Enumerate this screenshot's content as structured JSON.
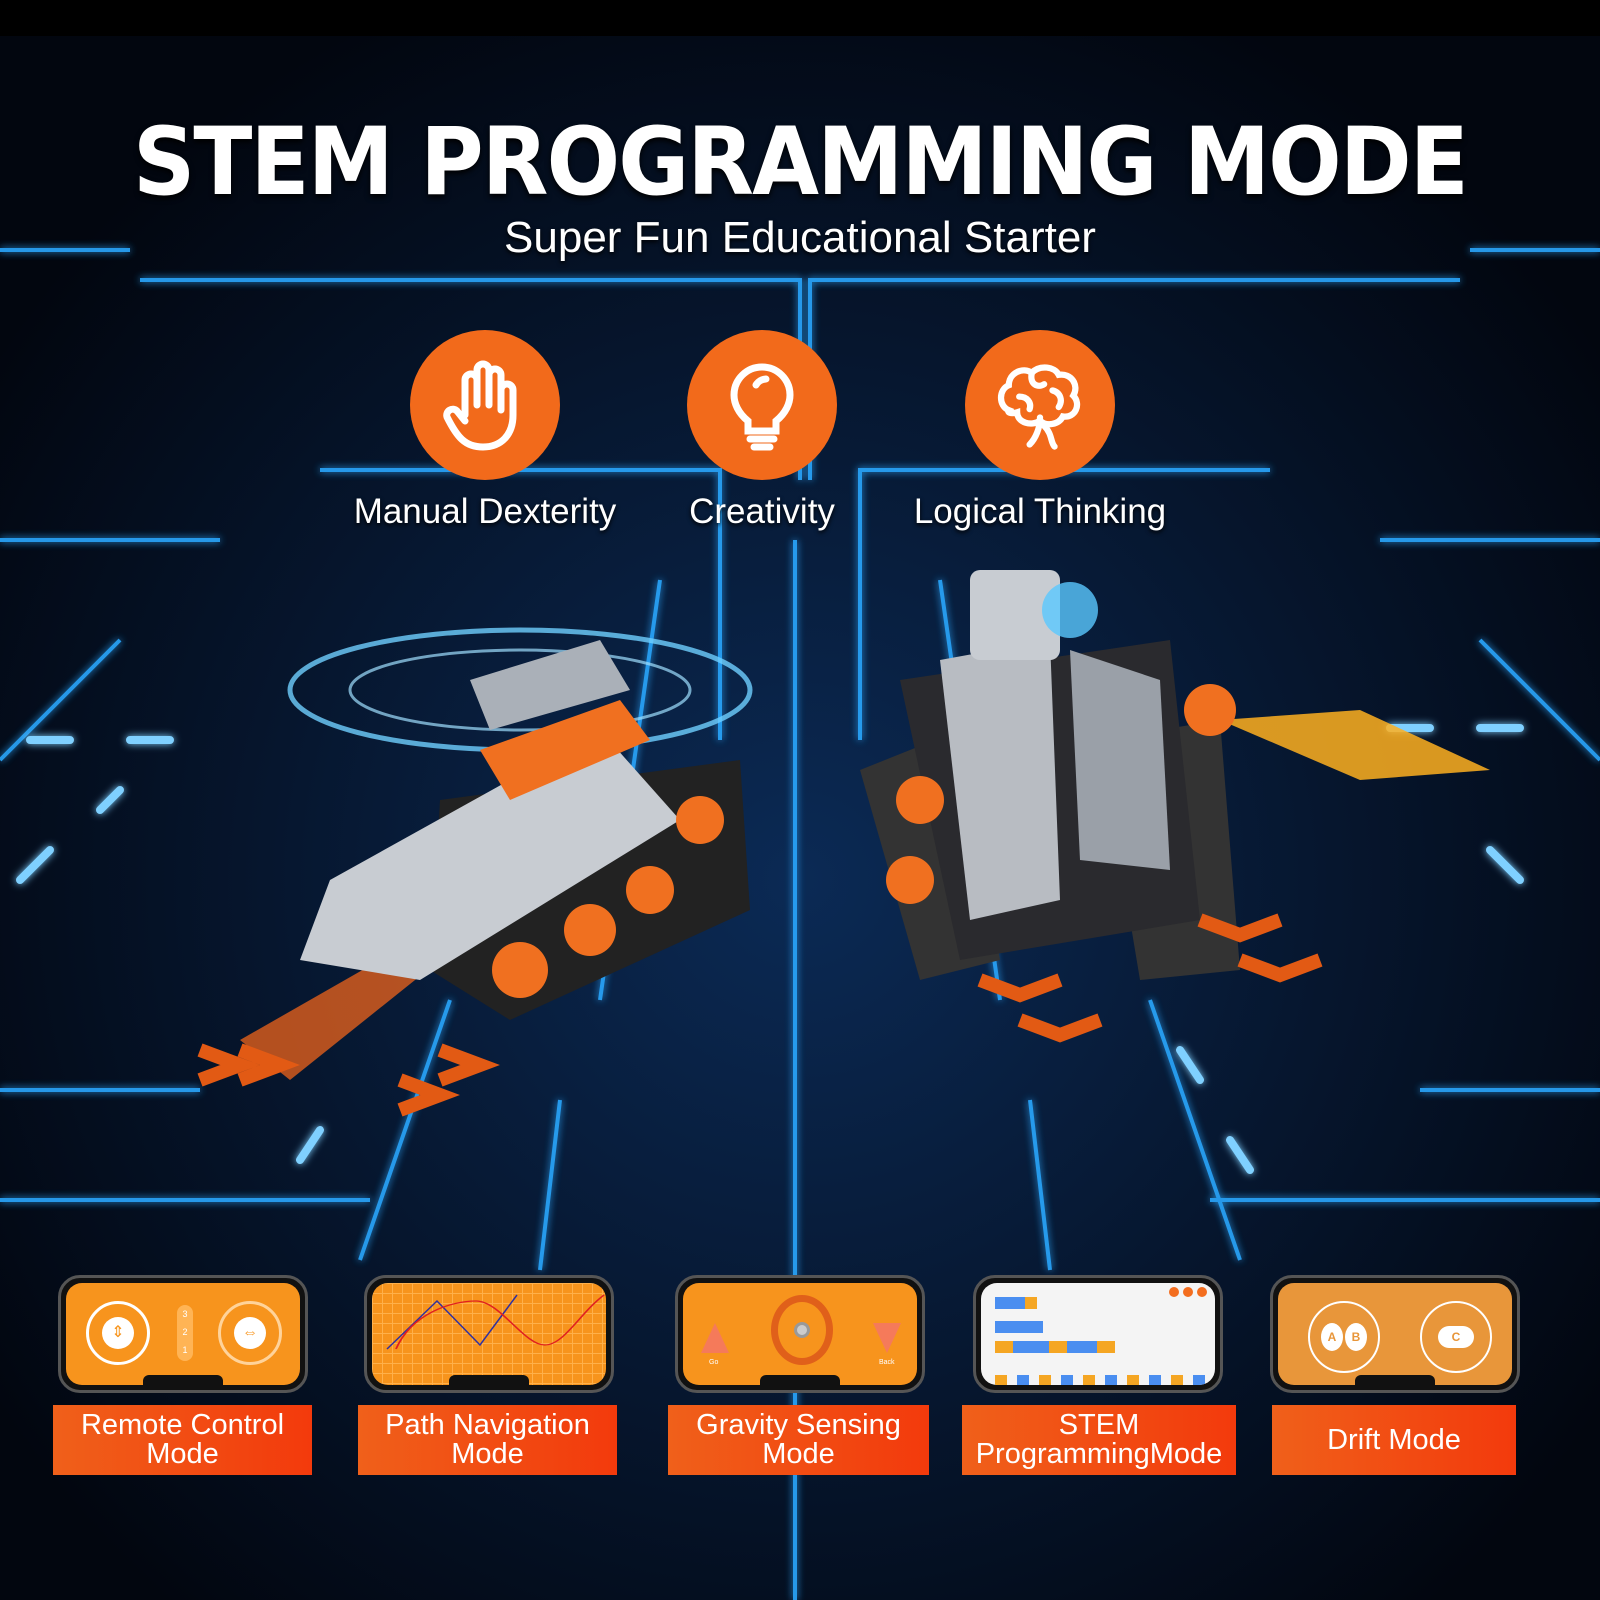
{
  "header": {
    "title": "STEM PROGRAMMING MODE",
    "subtitle": "Super Fun Educational Starter"
  },
  "features": [
    {
      "label": "Manual Dexterity",
      "icon": "hand-icon"
    },
    {
      "label": "Creativity",
      "icon": "lightbulb-icon"
    },
    {
      "label": "Logical Thinking",
      "icon": "brain-icon"
    }
  ],
  "modes": [
    {
      "label": "Remote Control Mode",
      "gears": [
        "3",
        "2",
        "1"
      ]
    },
    {
      "label": "Path Navigation Mode"
    },
    {
      "label": "Gravity Sensing Mode",
      "go": "Go",
      "back": "Back"
    },
    {
      "label": "STEM ProgrammingMode"
    },
    {
      "label": "Drift Mode",
      "buttons": [
        "A",
        "B",
        "C"
      ]
    }
  ],
  "colors": {
    "accent": "#f26a1b",
    "neon": "#1ea0ff",
    "background": "#040a18"
  }
}
